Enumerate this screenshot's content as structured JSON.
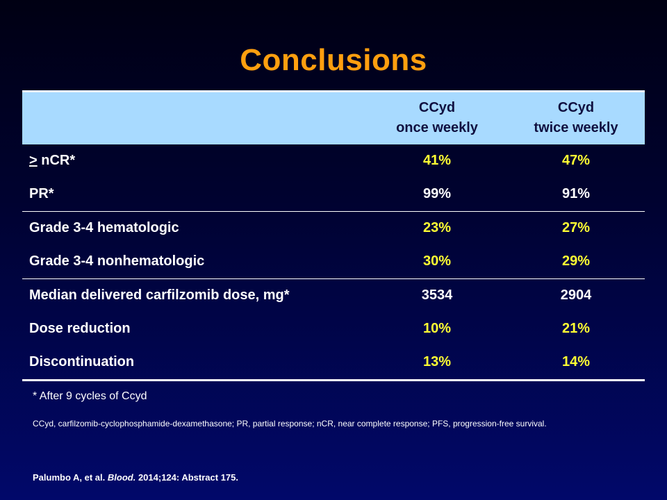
{
  "title": "Conclusions",
  "table": {
    "columns": [
      {
        "line1": "CCyd",
        "line2": "once weekly"
      },
      {
        "line1": "CCyd",
        "line2": "twice weekly"
      }
    ],
    "rows": [
      {
        "label_prefix": ">",
        "label": " nCR*",
        "values": [
          "41%",
          "47%"
        ],
        "highlight": true
      },
      {
        "label": "PR*",
        "values": [
          "99%",
          "91%"
        ],
        "highlight": false
      },
      {
        "label": "Grade 3-4 hematologic",
        "values": [
          "23%",
          "27%"
        ],
        "highlight": true
      },
      {
        "label": "Grade 3-4 nonhematologic",
        "values": [
          "30%",
          "29%"
        ],
        "highlight": true
      },
      {
        "label": "Median delivered carfilzomib dose, mg*",
        "values": [
          "3534",
          "2904"
        ],
        "highlight": false
      },
      {
        "label": "Dose reduction",
        "values": [
          "10%",
          "21%"
        ],
        "highlight": true
      },
      {
        "label": "Discontinuation",
        "values": [
          "13%",
          "14%"
        ],
        "highlight": true
      }
    ]
  },
  "footnote": "* After 9 cycles of Ccyd",
  "abbreviations": "CCyd, carfilzomib-cyclophosphamide-dexamethasone; PR, partial response; nCR, near complete response; PFS, progression-free survival.",
  "citation": {
    "authors": "Palumbo A,  et al.",
    "journal": "Blood.",
    "details": "2014;124: Abstract  175."
  },
  "colors": {
    "title": "#ff9f0f",
    "header_bg": "#a8daff",
    "highlight_value": "#ffff33",
    "text": "#ffffff"
  }
}
